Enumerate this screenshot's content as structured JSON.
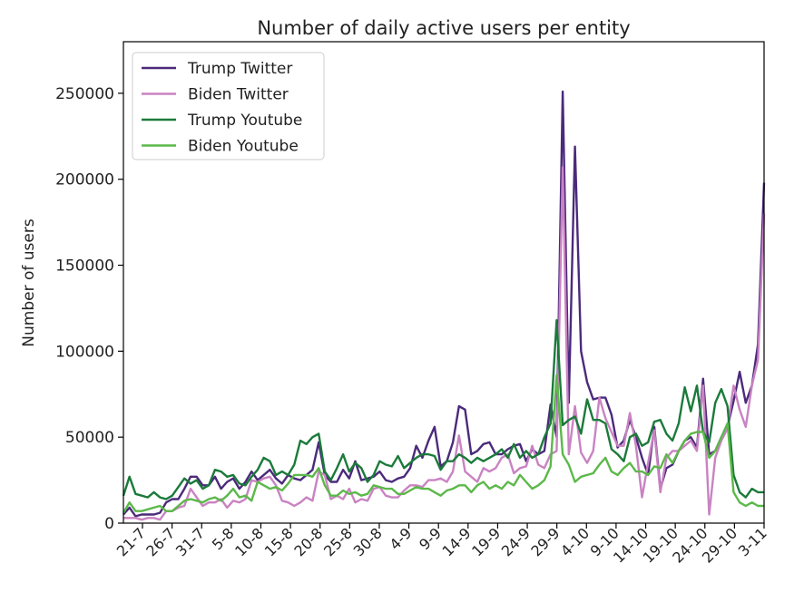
{
  "chart_data": {
    "type": "line",
    "title": "Number of daily active users per entity",
    "xlabel": "",
    "ylabel": "Number of users",
    "ylim": [
      0,
      280000
    ],
    "yticks": [
      0,
      50000,
      100000,
      150000,
      200000,
      250000
    ],
    "ytick_labels": [
      "0",
      "50000",
      "100000",
      "150000",
      "200000",
      "250000"
    ],
    "xtick_labels": [
      "21-7",
      "26-7",
      "31-7",
      "5-8",
      "10-8",
      "15-8",
      "20-8",
      "25-8",
      "30-8",
      "4-9",
      "9-9",
      "14-9",
      "19-9",
      "24-9",
      "29-9",
      "4-10",
      "9-10",
      "14-10",
      "19-10",
      "24-10",
      "29-10",
      "3-11"
    ],
    "grid": false,
    "legend_position": "top-left",
    "colors": {
      "Trump Twitter": "#4b2a7b",
      "Biden Twitter": "#c983c2",
      "Trump Youtube": "#1b7a3a",
      "Biden Youtube": "#5cb84a"
    },
    "series": [
      {
        "name": "Trump Twitter",
        "values": [
          5000,
          9000,
          4000,
          5000,
          5000,
          5000,
          6000,
          12000,
          14000,
          14000,
          20000,
          27000,
          27000,
          22000,
          22000,
          27000,
          20000,
          24000,
          26000,
          20000,
          24000,
          30000,
          25000,
          28000,
          31000,
          26000,
          23000,
          28000,
          26000,
          25000,
          28000,
          31000,
          47000,
          28000,
          24000,
          24000,
          31000,
          26000,
          36000,
          25000,
          26000,
          27000,
          30000,
          25000,
          24000,
          26000,
          27000,
          32000,
          45000,
          38000,
          48000,
          56000,
          33000,
          36000,
          47000,
          68000,
          66000,
          40000,
          42000,
          46000,
          47000,
          40000,
          40000,
          43000,
          45000,
          46000,
          36000,
          43000,
          40000,
          42000,
          69000,
          50000,
          251000,
          70000,
          219000,
          100000,
          82000,
          72000,
          73000,
          73000,
          63000,
          44000,
          48000,
          60000,
          50000,
          38000,
          28000,
          56000,
          20000,
          32000,
          34000,
          42000,
          48000,
          50000,
          44000,
          84000,
          40000,
          42000,
          50000,
          56000,
          71000,
          88000,
          70000,
          80000,
          104000,
          198000
        ]
      },
      {
        "name": "Biden Twitter",
        "values": [
          3000,
          3000,
          3000,
          2000,
          3000,
          3000,
          2000,
          7000,
          7000,
          9000,
          10000,
          20000,
          15000,
          10000,
          12000,
          12000,
          14000,
          9000,
          13000,
          12000,
          14000,
          25000,
          24000,
          26000,
          27000,
          22000,
          13000,
          12000,
          10000,
          12000,
          15000,
          13000,
          30000,
          28000,
          14000,
          16000,
          14000,
          20000,
          12000,
          14000,
          13000,
          20000,
          21000,
          16000,
          15000,
          15000,
          19000,
          22000,
          22000,
          21000,
          25000,
          25000,
          26000,
          24000,
          30000,
          51000,
          30000,
          27000,
          24000,
          32000,
          30000,
          32000,
          38000,
          40000,
          29000,
          32000,
          33000,
          45000,
          34000,
          32000,
          40000,
          42000,
          207000,
          40000,
          68000,
          41000,
          35000,
          42000,
          73000,
          61000,
          53000,
          45000,
          45000,
          64000,
          45000,
          15000,
          35000,
          54000,
          18000,
          38000,
          42000,
          42000,
          45000,
          48000,
          42000,
          80000,
          5000,
          38000,
          48000,
          55000,
          80000,
          66000,
          56000,
          80000,
          95000,
          180000
        ]
      },
      {
        "name": "Trump Youtube",
        "values": [
          16000,
          27000,
          17000,
          16000,
          15000,
          18000,
          15000,
          14000,
          16000,
          21000,
          26000,
          23000,
          25000,
          20000,
          22000,
          31000,
          30000,
          27000,
          28000,
          23000,
          22000,
          27000,
          31000,
          38000,
          36000,
          28000,
          30000,
          28000,
          34000,
          48000,
          46000,
          50000,
          52000,
          30000,
          25000,
          32000,
          40000,
          30000,
          35000,
          32000,
          24000,
          28000,
          36000,
          34000,
          33000,
          39000,
          32000,
          35000,
          38000,
          40000,
          40000,
          39000,
          31000,
          36000,
          36000,
          40000,
          38000,
          35000,
          38000,
          36000,
          38000,
          40000,
          43000,
          38000,
          46000,
          38000,
          42000,
          38000,
          40000,
          50000,
          58000,
          118000,
          57000,
          60000,
          62000,
          52000,
          72000,
          60000,
          60000,
          58000,
          43000,
          40000,
          36000,
          50000,
          52000,
          45000,
          47000,
          59000,
          60000,
          52000,
          48000,
          58000,
          79000,
          65000,
          80000,
          53000,
          47000,
          70000,
          78000,
          68000,
          28000,
          18000,
          15000,
          20000,
          18000,
          18000
        ]
      },
      {
        "name": "Biden Youtube",
        "values": [
          6000,
          12000,
          7000,
          7000,
          8000,
          9000,
          10000,
          7000,
          7000,
          10000,
          13000,
          14000,
          13000,
          12000,
          14000,
          15000,
          13000,
          16000,
          20000,
          15000,
          16000,
          13000,
          24000,
          22000,
          20000,
          21000,
          19000,
          23000,
          28000,
          28000,
          28000,
          27000,
          32000,
          22000,
          16000,
          16000,
          19000,
          17000,
          18000,
          16000,
          17000,
          22000,
          21000,
          20000,
          20000,
          17000,
          17000,
          19000,
          21000,
          20000,
          20000,
          18000,
          16000,
          19000,
          20000,
          22000,
          22000,
          18000,
          22000,
          24000,
          20000,
          22000,
          20000,
          24000,
          22000,
          28000,
          24000,
          20000,
          22000,
          25000,
          33000,
          86000,
          40000,
          34000,
          24000,
          27000,
          28000,
          29000,
          34000,
          38000,
          30000,
          28000,
          32000,
          35000,
          30000,
          30000,
          28000,
          33000,
          32000,
          40000,
          35000,
          42000,
          48000,
          52000,
          53000,
          53000,
          38000,
          42000,
          50000,
          58000,
          18000,
          12000,
          10000,
          12000,
          10000,
          10000
        ]
      }
    ]
  }
}
